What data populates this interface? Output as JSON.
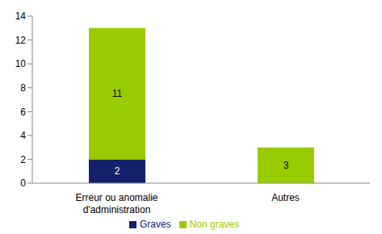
{
  "chart_data": {
    "type": "bar",
    "stacked": true,
    "data_labels": true,
    "grid": false,
    "legend": "bottom",
    "categories": [
      "Erreur ou anomalie d'administration",
      "Autres"
    ],
    "series": [
      {
        "name": "Graves",
        "color": "#14206e",
        "values": [
          2,
          null
        ]
      },
      {
        "name": "Non graves",
        "color": "#99cc00",
        "values": [
          11,
          3
        ]
      }
    ],
    "ylim": [
      0,
      14
    ],
    "yticks": [
      0,
      2,
      4,
      6,
      8,
      10,
      12,
      14
    ]
  }
}
